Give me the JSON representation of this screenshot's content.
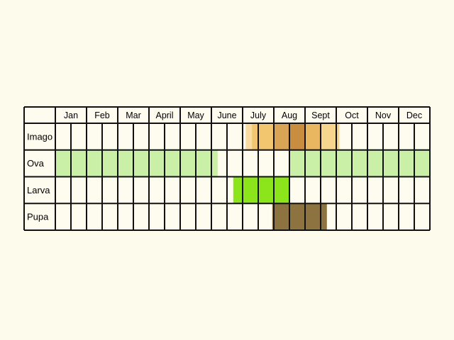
{
  "months": [
    "Jan",
    "Feb",
    "Mar",
    "April",
    "May",
    "June",
    "July",
    "Aug",
    "Sept",
    "Oct",
    "Nov",
    "Dec"
  ],
  "stages": [
    {
      "label": "Imago",
      "bands": [
        {
          "from": 6.1,
          "to": 6.3,
          "color": "#f9dca0"
        },
        {
          "from": 6.3,
          "to": 7.0,
          "color": "#f2c66e"
        },
        {
          "from": 7.0,
          "to": 7.5,
          "color": "#d9a456"
        },
        {
          "from": 7.5,
          "to": 8.0,
          "color": "#c88d3f"
        },
        {
          "from": 8.0,
          "to": 8.5,
          "color": "#e8b760"
        },
        {
          "from": 8.5,
          "to": 9.1,
          "color": "#f6d58c"
        }
      ]
    },
    {
      "label": "Ova",
      "bands": [
        {
          "from": 0.0,
          "to": 5.2,
          "color": "#c9f0a6"
        },
        {
          "from": 7.5,
          "to": 12.0,
          "color": "#c9f0a6"
        }
      ]
    },
    {
      "label": "Larva",
      "bands": [
        {
          "from": 5.7,
          "to": 7.5,
          "color": "#8ce51a"
        }
      ]
    },
    {
      "label": "Pupa",
      "bands": [
        {
          "from": 6.95,
          "to": 8.7,
          "color": "#8c7340"
        }
      ]
    }
  ]
}
